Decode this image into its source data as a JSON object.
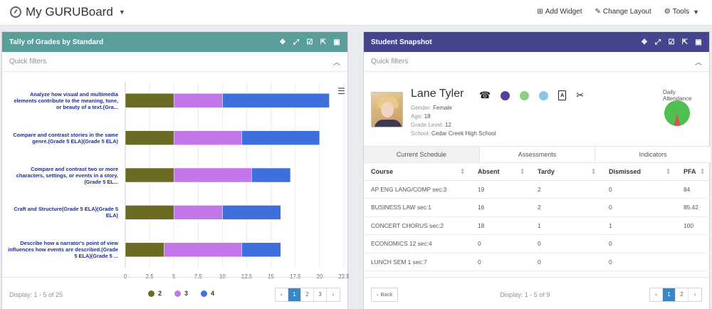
{
  "topbar": {
    "title": "My GURUBoard",
    "actions": [
      {
        "label": "Add Widget",
        "icon": "plus-square-icon"
      },
      {
        "label": "Change Layout",
        "icon": "pencil-icon"
      },
      {
        "label": "Tools",
        "icon": "gear-icon"
      }
    ]
  },
  "left_panel": {
    "title": "Tally of Grades by Standard",
    "quick_filters": "Quick filters",
    "display": "Display: 1 - 5 of 25",
    "pages": [
      "‹",
      "1",
      "2",
      "3",
      "›"
    ],
    "active_page": "1"
  },
  "chart_data": {
    "type": "bar",
    "orientation": "horizontal",
    "stacked": true,
    "categories": [
      "Analyze how visual and multimedia elements contribute to the meaning, tone, or beauty of a text.(Gra...",
      "Compare and contrast stories in the same genre.(Grade 5 ELA)(Grade 5 ELA)",
      "Compare and contrast two or more characters, settings, or events in a story.(Grade 5 EL...",
      "Craft and Structure(Grade 5 ELA)(Grade 5 ELA)",
      "Describe how a narrator's point of view influences how events are described.(Grade 5 ELA)(Grade 5 ..."
    ],
    "series": [
      {
        "name": "2",
        "values": [
          5,
          5,
          5,
          5,
          4
        ],
        "color": "#6b6b24"
      },
      {
        "name": "3",
        "values": [
          5,
          7,
          8,
          5,
          8
        ],
        "color": "#c276e8"
      },
      {
        "name": "4",
        "values": [
          11,
          8,
          4,
          6,
          4
        ],
        "color": "#3f6fdc"
      }
    ],
    "xticks": [
      "0",
      "2.5",
      "5",
      "7.5",
      "10",
      "12.5",
      "15",
      "17.5",
      "20",
      "22.5"
    ],
    "xlim": [
      0,
      22.5
    ],
    "title": "",
    "xlabel": "",
    "ylabel": "",
    "legend": "bottom"
  },
  "right_panel": {
    "title": "Student Snapshot",
    "quick_filters": "Quick filters",
    "student": {
      "name": "Lane Tyler",
      "gender_label": "Gender:",
      "gender": "Female",
      "age_label": "Age:",
      "age": "18",
      "grade_label": "Grade Level:",
      "grade": "12",
      "school_label": "School:",
      "school": "Cedar Creek High School"
    },
    "status_dots": [
      "#5a3f99",
      "#8ccf7e",
      "#8ac4e8"
    ],
    "attendance_label": "Daily Attendance",
    "attendance": {
      "present_pct": 92,
      "absent_pct": 8,
      "present_color": "#4fbf4f",
      "absent_color": "#d9534f"
    },
    "tabs": [
      "Current Schedule",
      "Assessments",
      "Indicators"
    ],
    "active_tab": "Current Schedule",
    "table": {
      "columns": [
        "Course",
        "Absent",
        "Tardy",
        "Dismissed",
        "PFA"
      ],
      "rows": [
        [
          "AP ENG LANG/COMP sec:3",
          "19",
          "2",
          "0",
          "84"
        ],
        [
          "BUSINESS LAW sec:1",
          "16",
          "2",
          "0",
          "85.42"
        ],
        [
          "CONCERT CHORUS sec:2",
          "18",
          "1",
          "1",
          "100"
        ],
        [
          "ECONOMICS 12 sec:4",
          "0",
          "0",
          "0",
          ""
        ],
        [
          "LUNCH SEM 1 sec:7",
          "0",
          "0",
          "0",
          ""
        ]
      ]
    },
    "back_label": "Back",
    "display": "Display: 1 - 5 of 9",
    "pages": [
      "‹",
      "1",
      "2",
      "›"
    ],
    "active_page": "1"
  }
}
